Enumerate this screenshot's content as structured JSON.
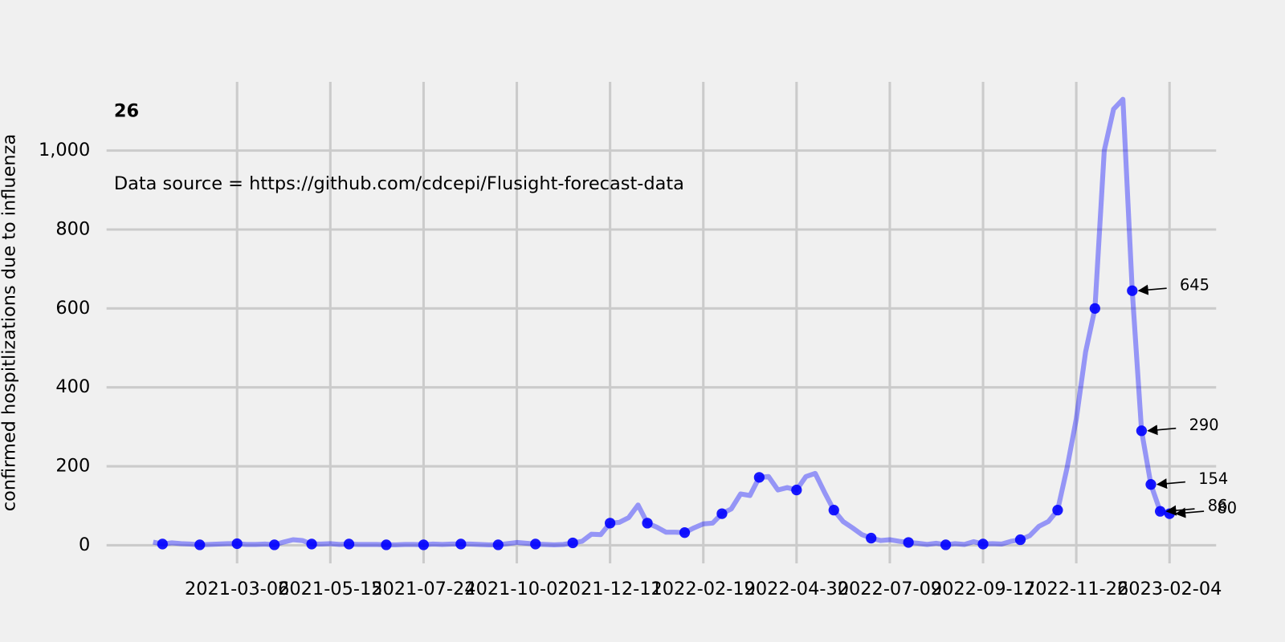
{
  "chart_data": {
    "type": "line",
    "title": "26",
    "annotation": "Data source = https://github.com/cdcepi/Flusight-forecast-data",
    "ylabel": "confirmed hospitlizations due to influenza",
    "color": "#0000ff",
    "grid": true,
    "xlim": [
      "2020-11-28",
      "2023-03-11"
    ],
    "ylim": [
      -46,
      1174
    ],
    "xticks": [
      "2021-03-06",
      "2021-05-15",
      "2021-07-24",
      "2021-10-02",
      "2021-12-11",
      "2022-02-19",
      "2022-04-30",
      "2022-07-09",
      "2022-09-17",
      "2022-11-26",
      "2023-02-04"
    ],
    "yticks": [
      0,
      200,
      400,
      600,
      800,
      {
        "value": 1000,
        "label": "1,000"
      }
    ],
    "line": {
      "x": [
        "2021-01-02",
        "2021-01-09",
        "2021-01-16",
        "2021-01-23",
        "2021-01-30",
        "2021-02-06",
        "2021-02-13",
        "2021-02-20",
        "2021-02-27",
        "2021-03-06",
        "2021-03-13",
        "2021-03-20",
        "2021-03-27",
        "2021-04-03",
        "2021-04-10",
        "2021-04-17",
        "2021-04-24",
        "2021-05-01",
        "2021-05-08",
        "2021-05-15",
        "2021-05-22",
        "2021-05-29",
        "2021-06-05",
        "2021-06-12",
        "2021-06-19",
        "2021-06-26",
        "2021-07-03",
        "2021-07-10",
        "2021-07-17",
        "2021-07-24",
        "2021-07-31",
        "2021-08-07",
        "2021-08-14",
        "2021-08-21",
        "2021-08-28",
        "2021-09-04",
        "2021-09-11",
        "2021-09-18",
        "2021-09-25",
        "2021-10-02",
        "2021-10-09",
        "2021-10-16",
        "2021-10-23",
        "2021-10-30",
        "2021-11-06",
        "2021-11-13",
        "2021-11-20",
        "2021-11-27",
        "2021-12-04",
        "2021-12-11",
        "2021-12-18",
        "2021-12-25",
        "2022-01-01",
        "2022-01-08",
        "2022-01-15",
        "2022-01-22",
        "2022-01-29",
        "2022-02-05",
        "2022-02-12",
        "2022-02-19",
        "2022-02-26",
        "2022-03-05",
        "2022-03-12",
        "2022-03-19",
        "2022-03-26",
        "2022-04-02",
        "2022-04-09",
        "2022-04-16",
        "2022-04-23",
        "2022-04-30",
        "2022-05-07",
        "2022-05-14",
        "2022-05-21",
        "2022-05-28",
        "2022-06-04",
        "2022-06-11",
        "2022-06-18",
        "2022-06-25",
        "2022-07-02",
        "2022-07-09",
        "2022-07-16",
        "2022-07-23",
        "2022-07-30",
        "2022-08-06",
        "2022-08-13",
        "2022-08-20",
        "2022-08-27",
        "2022-09-03",
        "2022-09-10",
        "2022-09-17",
        "2022-09-24",
        "2022-10-01",
        "2022-10-08",
        "2022-10-15",
        "2022-10-22",
        "2022-10-29",
        "2022-11-05",
        "2022-11-12",
        "2022-11-19",
        "2022-11-26",
        "2022-12-03",
        "2022-12-10",
        "2022-12-17",
        "2022-12-24",
        "2022-12-31",
        "2023-01-07",
        "2023-01-14",
        "2023-01-21",
        "2023-01-28",
        "2023-02-04"
      ],
      "values": [
        8,
        3,
        6,
        4,
        3,
        1,
        2,
        3,
        4,
        4,
        2,
        2,
        3,
        1,
        8,
        14,
        12,
        3,
        3,
        4,
        2,
        3,
        2,
        2,
        2,
        1,
        1,
        2,
        2,
        1,
        3,
        2,
        3,
        3,
        3,
        2,
        1,
        1,
        4,
        7,
        5,
        3,
        2,
        1,
        2,
        6,
        10,
        28,
        27,
        56,
        58,
        70,
        102,
        56,
        46,
        33,
        33,
        32,
        44,
        54,
        56,
        80,
        92,
        130,
        126,
        172,
        174,
        140,
        146,
        140,
        174,
        182,
        134,
        89,
        60,
        44,
        27,
        18,
        12,
        14,
        10,
        7,
        5,
        2,
        5,
        1,
        4,
        2,
        9,
        3,
        4,
        3,
        10,
        14,
        24,
        48,
        60,
        89,
        195,
        320,
        490,
        600,
        1000,
        1105,
        1130,
        645,
        290,
        154,
        86,
        80
      ]
    },
    "points": {
      "x": [
        "2021-01-09",
        "2021-02-06",
        "2021-03-06",
        "2021-04-03",
        "2021-05-01",
        "2021-05-29",
        "2021-06-26",
        "2021-07-24",
        "2021-08-21",
        "2021-09-18",
        "2021-10-16",
        "2021-11-13",
        "2021-12-11",
        "2022-01-08",
        "2022-02-05",
        "2022-03-05",
        "2022-04-02",
        "2022-04-30",
        "2022-05-28",
        "2022-06-25",
        "2022-07-23",
        "2022-08-20",
        "2022-09-17",
        "2022-10-15",
        "2022-11-12",
        "2022-12-10",
        "2023-01-07",
        "2023-01-14",
        "2023-01-21",
        "2023-01-28",
        "2023-02-04"
      ],
      "values": [
        3,
        1,
        4,
        1,
        3,
        3,
        1,
        1,
        3,
        1,
        3,
        6,
        56,
        56,
        32,
        80,
        172,
        140,
        89,
        18,
        7,
        1,
        3,
        14,
        89,
        600,
        645,
        290,
        154,
        86,
        80
      ]
    },
    "callouts": [
      {
        "x": "2023-01-07",
        "value": 645
      },
      {
        "x": "2023-01-14",
        "value": 290
      },
      {
        "x": "2023-01-21",
        "value": 154
      },
      {
        "x": "2023-01-28",
        "value": 86
      },
      {
        "x": "2023-02-04",
        "value": 80
      }
    ]
  }
}
